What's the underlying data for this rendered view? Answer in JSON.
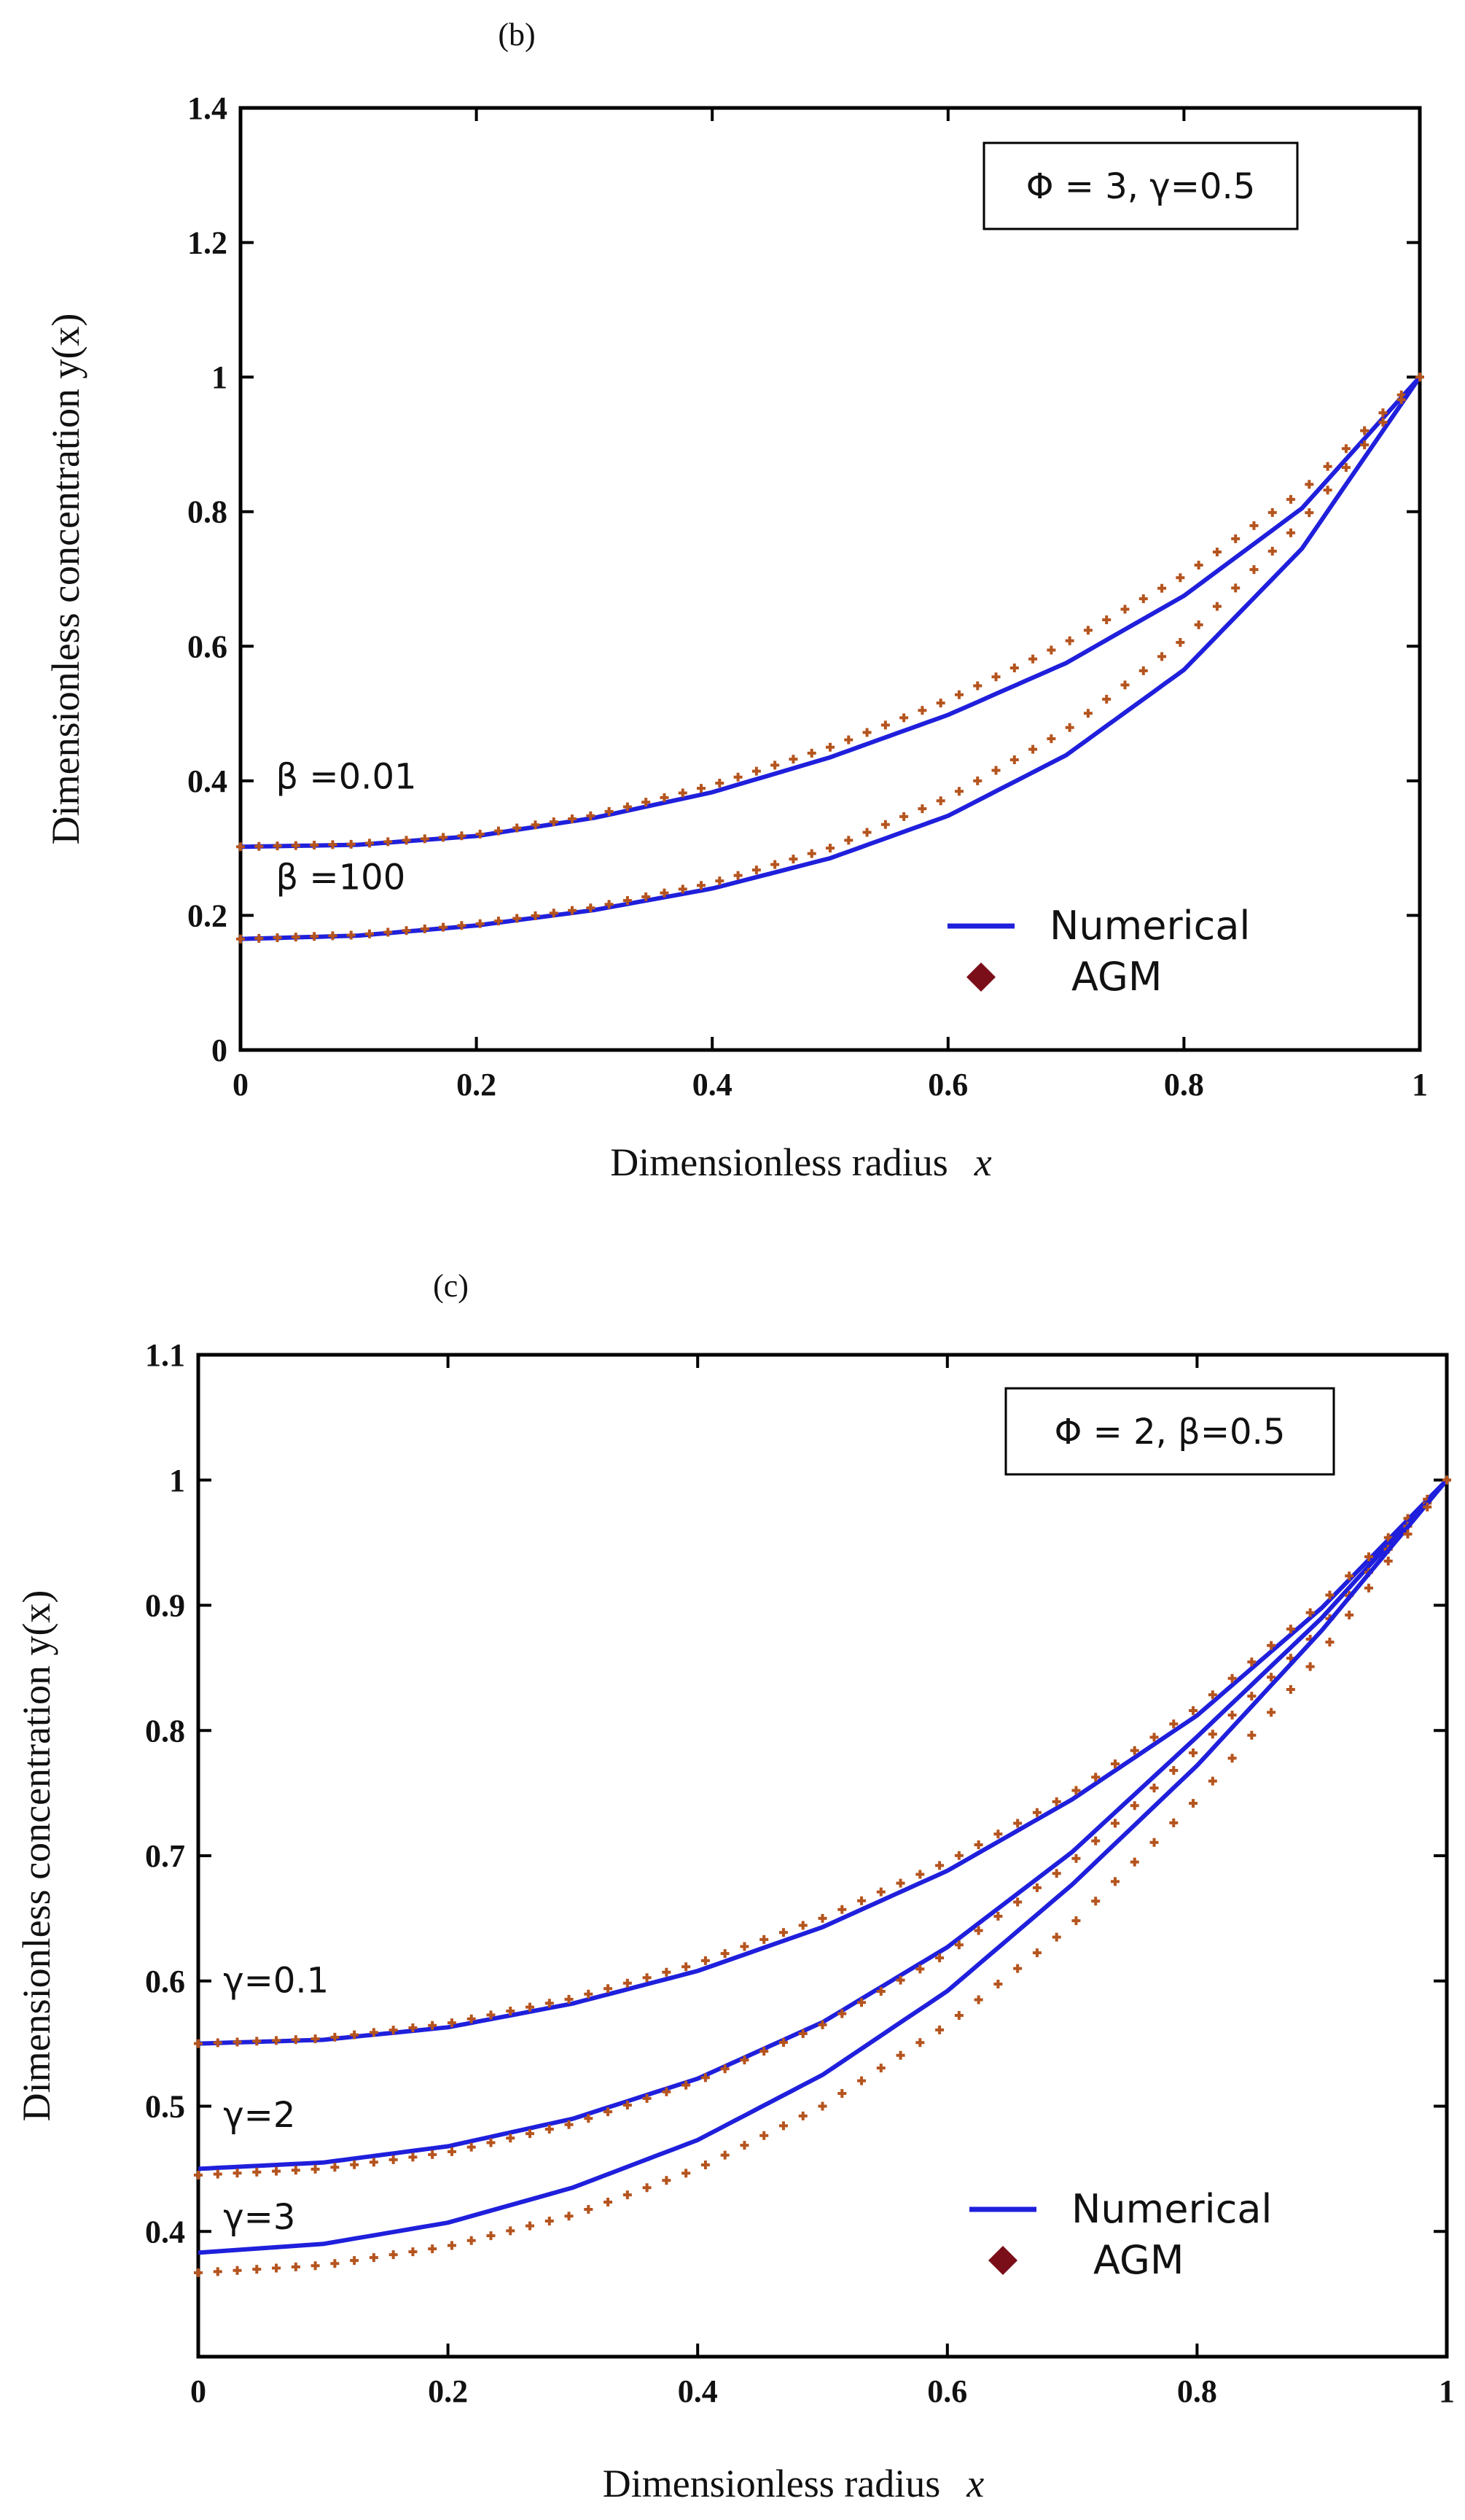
{
  "chart_data": [
    {
      "panel": "(b)",
      "type": "line",
      "title": "(b)",
      "xlabel": "Dimensionless radius",
      "xlabel_var": "x",
      "ylabel": "Dimensionless concentration y(x)",
      "xlim": [
        0,
        1
      ],
      "ylim": [
        0,
        1.4
      ],
      "xticks": [
        0,
        0.2,
        0.4,
        0.6,
        0.8,
        1
      ],
      "xtick_labels": [
        "0",
        "0.2",
        "0.4",
        "0.6",
        "0.8",
        "1"
      ],
      "yticks": [
        0,
        0.2,
        0.4,
        0.6,
        0.8,
        1.0,
        1.2,
        1.4
      ],
      "ytick_labels": [
        "0",
        "0.2",
        "0.4",
        "0.6",
        "0.8",
        "1",
        "1.2",
        "1.4"
      ],
      "params": "Φ = 3, γ=0.5",
      "legend": {
        "position": "bottom-right",
        "numerical": "Numerical",
        "agm": "AGM"
      },
      "colors": {
        "numerical": "#1f1fdc",
        "agm": "#b5541e",
        "legend_agm": "#7a0f1a"
      },
      "x": [
        0,
        0.1,
        0.2,
        0.3,
        0.4,
        0.5,
        0.6,
        0.7,
        0.8,
        0.9,
        1.0
      ],
      "series": [
        {
          "label": "β =0.01",
          "label_x": 0.03,
          "numerical": [
            0.302,
            0.305,
            0.318,
            0.345,
            0.383,
            0.435,
            0.498,
            0.575,
            0.675,
            0.805,
            1.0
          ],
          "agm": [
            0.302,
            0.306,
            0.32,
            0.349,
            0.393,
            0.45,
            0.52,
            0.605,
            0.705,
            0.83,
            1.0
          ]
        },
        {
          "label": "β =100",
          "label_x": 0.03,
          "numerical": [
            0.165,
            0.17,
            0.185,
            0.208,
            0.24,
            0.285,
            0.348,
            0.438,
            0.565,
            0.745,
            1.0
          ],
          "agm": [
            0.165,
            0.171,
            0.187,
            0.212,
            0.248,
            0.3,
            0.375,
            0.475,
            0.61,
            0.785,
            1.0
          ]
        }
      ]
    },
    {
      "panel": "(c)",
      "type": "line",
      "title": "(c)",
      "xlabel": "Dimensionless radius",
      "xlabel_var": "x",
      "ylabel": "Dimensionless concentration y(x)",
      "xlim": [
        0,
        1
      ],
      "ylim": [
        0.3,
        1.1
      ],
      "xticks": [
        0,
        0.2,
        0.4,
        0.6,
        0.8,
        1
      ],
      "xtick_labels": [
        "0",
        "0.2",
        "0.4",
        "0.6",
        "0.8",
        "1"
      ],
      "yticks": [
        0.4,
        0.5,
        0.6,
        0.7,
        0.8,
        0.9,
        1.0,
        1.1
      ],
      "ytick_labels": [
        "0.4",
        "0.5",
        "0.6",
        "0.7",
        "0.8",
        "0.9",
        "1",
        "1.1"
      ],
      "params": "Φ = 2, β=0.5",
      "legend": {
        "position": "bottom-right",
        "numerical": "Numerical",
        "agm": "AGM"
      },
      "colors": {
        "numerical": "#1f1fdc",
        "agm": "#b5541e",
        "legend_agm": "#7a0f1a"
      },
      "x": [
        0,
        0.1,
        0.2,
        0.3,
        0.4,
        0.5,
        0.6,
        0.7,
        0.8,
        0.9,
        1.0
      ],
      "series": [
        {
          "label": "γ=0.1",
          "label_x": 0.02,
          "numerical": [
            0.55,
            0.553,
            0.563,
            0.582,
            0.608,
            0.643,
            0.688,
            0.745,
            0.812,
            0.898,
            1.0
          ],
          "agm": [
            0.55,
            0.554,
            0.566,
            0.586,
            0.614,
            0.65,
            0.695,
            0.75,
            0.818,
            0.902,
            1.0
          ]
        },
        {
          "label": "γ=2",
          "label_x": 0.02,
          "numerical": [
            0.45,
            0.455,
            0.468,
            0.49,
            0.522,
            0.567,
            0.627,
            0.703,
            0.795,
            0.89,
            1.0
          ],
          "agm": [
            0.445,
            0.45,
            0.463,
            0.486,
            0.52,
            0.565,
            0.622,
            0.695,
            0.785,
            0.882,
            1.0
          ]
        },
        {
          "label": "γ=3",
          "label_x": 0.02,
          "numerical": [
            0.383,
            0.39,
            0.407,
            0.435,
            0.473,
            0.525,
            0.592,
            0.677,
            0.772,
            0.88,
            1.0
          ],
          "agm": [
            0.367,
            0.373,
            0.388,
            0.413,
            0.45,
            0.5,
            0.565,
            0.645,
            0.745,
            0.862,
            1.0
          ]
        }
      ]
    }
  ]
}
